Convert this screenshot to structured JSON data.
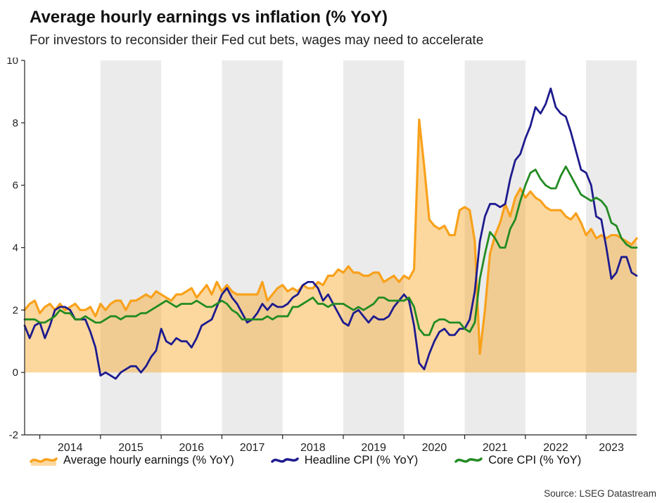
{
  "chart_data": {
    "type": "line",
    "title": "Average hourly earnings vs inflation (% YoY)",
    "subtitle": "For investors to reconsider their Fed cut bets, wages may need to accelerate",
    "source_note": "Source: LSEG Datastream",
    "frequency": "monthly",
    "x_start": "2013-10",
    "x_end": "2023-11",
    "ylim": [
      -2,
      10
    ],
    "yticks": [
      -2,
      0,
      2,
      4,
      6,
      8,
      10
    ],
    "x_year_labels": [
      2014,
      2015,
      2016,
      2017,
      2018,
      2019,
      2020,
      2021,
      2022,
      2023
    ],
    "shaded_years": [
      2015,
      2017,
      2019,
      2021,
      2023
    ],
    "band_color": "#EBEBEB",
    "axis_color": "#222222",
    "series": [
      {
        "name": "Average hourly earnings (% YoY)",
        "color": "#F9A11B",
        "fill": "rgba(249,161,27,0.42)",
        "width": 3.2,
        "values": [
          2.0,
          2.2,
          2.3,
          1.9,
          2.1,
          2.2,
          2.0,
          2.2,
          2.0,
          2.1,
          2.2,
          2.0,
          2.0,
          2.1,
          1.8,
          2.2,
          2.0,
          2.2,
          2.3,
          2.3,
          2.0,
          2.3,
          2.3,
          2.4,
          2.5,
          2.4,
          2.6,
          2.5,
          2.4,
          2.3,
          2.5,
          2.5,
          2.6,
          2.7,
          2.4,
          2.6,
          2.8,
          2.5,
          2.9,
          2.6,
          2.8,
          2.6,
          2.5,
          2.5,
          2.5,
          2.5,
          2.5,
          2.9,
          2.3,
          2.5,
          2.7,
          2.8,
          2.6,
          2.7,
          2.6,
          2.8,
          2.7,
          2.7,
          2.9,
          2.8,
          3.1,
          3.1,
          3.3,
          3.2,
          3.4,
          3.2,
          3.2,
          3.1,
          3.1,
          3.2,
          3.2,
          2.9,
          3.0,
          3.1,
          2.9,
          3.1,
          3.0,
          3.3,
          8.1,
          6.6,
          4.9,
          4.7,
          4.6,
          4.7,
          4.4,
          4.4,
          5.2,
          5.3,
          5.2,
          4.2,
          0.6,
          2.0,
          3.8,
          4.4,
          4.8,
          5.4,
          5.0,
          5.6,
          5.9,
          5.6,
          5.8,
          5.6,
          5.5,
          5.3,
          5.2,
          5.2,
          5.2,
          5.0,
          4.9,
          5.1,
          4.8,
          4.4,
          4.6,
          4.3,
          4.4,
          4.3,
          4.4,
          4.4,
          4.3,
          4.2,
          4.1,
          4.3
        ]
      },
      {
        "name": "Headline CPI (% YoY)",
        "color": "#1E1B8E",
        "width": 2.8,
        "values": [
          1.5,
          1.1,
          1.5,
          1.6,
          1.1,
          1.5,
          2.0,
          2.1,
          2.1,
          2.0,
          1.7,
          1.7,
          1.7,
          1.3,
          0.8,
          -0.1,
          0.0,
          -0.1,
          -0.2,
          0.0,
          0.1,
          0.2,
          0.2,
          0.0,
          0.2,
          0.5,
          0.7,
          1.4,
          1.0,
          0.9,
          1.1,
          1.0,
          1.0,
          0.8,
          1.1,
          1.5,
          1.6,
          1.7,
          2.1,
          2.5,
          2.7,
          2.4,
          2.2,
          1.9,
          1.6,
          1.7,
          1.9,
          2.2,
          2.0,
          2.2,
          2.1,
          2.1,
          2.2,
          2.4,
          2.5,
          2.8,
          2.9,
          2.9,
          2.7,
          2.3,
          2.5,
          2.2,
          1.9,
          1.6,
          1.5,
          1.9,
          2.0,
          1.8,
          1.6,
          1.8,
          1.7,
          1.7,
          1.8,
          2.1,
          2.3,
          2.5,
          2.3,
          1.5,
          0.3,
          0.1,
          0.6,
          1.0,
          1.3,
          1.4,
          1.2,
          1.2,
          1.4,
          1.4,
          1.7,
          2.6,
          4.2,
          5.0,
          5.4,
          5.4,
          5.3,
          5.4,
          6.2,
          6.8,
          7.0,
          7.5,
          7.9,
          8.5,
          8.3,
          8.6,
          9.1,
          8.5,
          8.3,
          8.2,
          7.7,
          7.1,
          6.5,
          6.4,
          6.0,
          5.0,
          4.9,
          4.0,
          3.0,
          3.2,
          3.7,
          3.7,
          3.2,
          3.1
        ]
      },
      {
        "name": "Core CPI (% YoY)",
        "color": "#228B22",
        "width": 2.8,
        "values": [
          1.7,
          1.7,
          1.7,
          1.6,
          1.6,
          1.7,
          1.8,
          2.0,
          1.9,
          1.9,
          1.7,
          1.7,
          1.8,
          1.7,
          1.6,
          1.6,
          1.7,
          1.8,
          1.8,
          1.7,
          1.8,
          1.8,
          1.8,
          1.9,
          1.9,
          2.0,
          2.1,
          2.2,
          2.3,
          2.2,
          2.1,
          2.2,
          2.2,
          2.2,
          2.3,
          2.2,
          2.1,
          2.1,
          2.2,
          2.3,
          2.2,
          2.0,
          1.9,
          1.7,
          1.7,
          1.7,
          1.7,
          1.7,
          1.8,
          1.7,
          1.8,
          1.8,
          1.8,
          2.1,
          2.1,
          2.2,
          2.3,
          2.4,
          2.2,
          2.2,
          2.1,
          2.2,
          2.2,
          2.2,
          2.1,
          2.0,
          2.1,
          2.0,
          2.1,
          2.2,
          2.4,
          2.4,
          2.3,
          2.3,
          2.3,
          2.3,
          2.4,
          2.1,
          1.4,
          1.2,
          1.2,
          1.6,
          1.7,
          1.7,
          1.6,
          1.6,
          1.6,
          1.4,
          1.3,
          1.6,
          3.0,
          3.8,
          4.5,
          4.3,
          4.0,
          4.0,
          4.6,
          4.9,
          5.5,
          6.0,
          6.4,
          6.5,
          6.2,
          6.0,
          5.9,
          5.9,
          6.3,
          6.6,
          6.3,
          6.0,
          5.7,
          5.6,
          5.5,
          5.6,
          5.5,
          5.3,
          4.8,
          4.7,
          4.3,
          4.1,
          4.0,
          4.0
        ]
      }
    ]
  }
}
